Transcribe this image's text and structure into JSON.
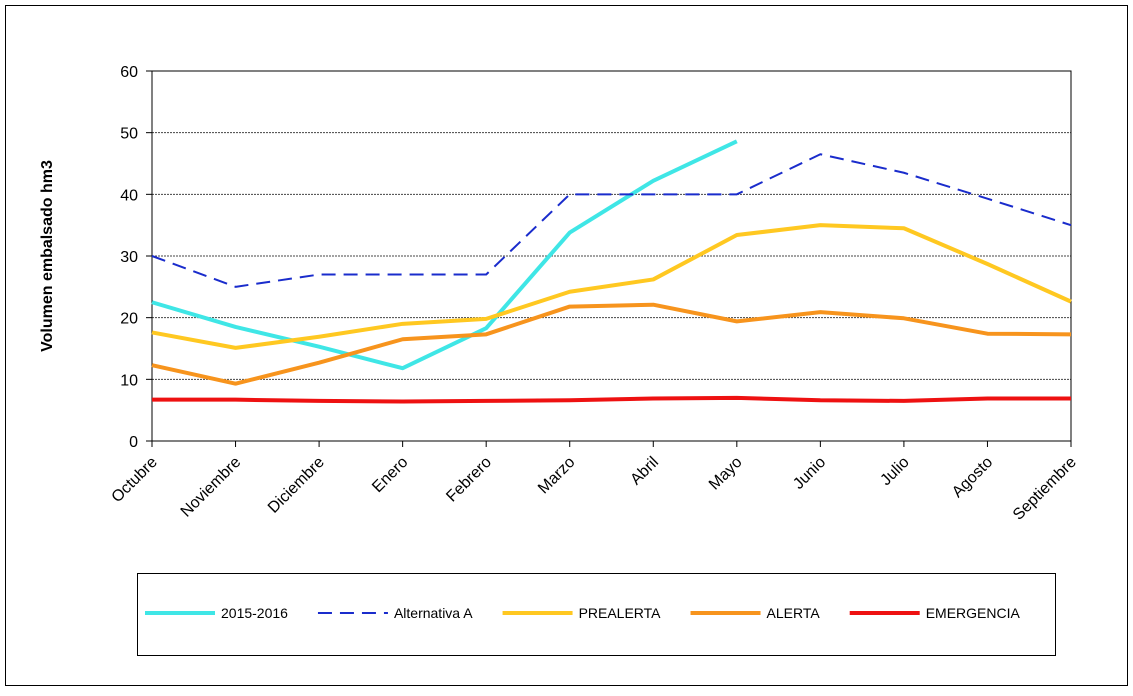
{
  "chart_data": {
    "type": "line",
    "y_label": "Volumen embalsado hm3",
    "categories": [
      "Octubre",
      "Noviembre",
      "Diciembre",
      "Enero",
      "Febrero",
      "Marzo",
      "Abril",
      "Mayo",
      "Junio",
      "Julio",
      "Agosto",
      "Septiembre"
    ],
    "ylim": [
      0,
      60
    ],
    "yticks": [
      0,
      10,
      20,
      30,
      40,
      50,
      60
    ],
    "grid": true,
    "legend": "bottom",
    "series": [
      {
        "name": "2015-2016",
        "color": "#3fe6e6",
        "values": [
          22.5,
          18.5,
          15.3,
          11.8,
          18.3,
          33.8,
          42.2,
          48.6,
          null,
          null,
          null,
          null
        ]
      },
      {
        "name": "Alternativa A",
        "color": "#1a2ccc",
        "dashed": true,
        "values": [
          30,
          25,
          27,
          27,
          27,
          40,
          40,
          40,
          46.5,
          43.5,
          39.3,
          35
        ]
      },
      {
        "name": "PREALERTA",
        "color": "#ffc821",
        "values": [
          17.6,
          15.1,
          16.9,
          19.0,
          19.8,
          24.2,
          26.2,
          33.4,
          35.0,
          34.5,
          28.7,
          22.6
        ]
      },
      {
        "name": "ALERTA",
        "color": "#f7941d",
        "values": [
          12.3,
          9.3,
          12.7,
          16.5,
          17.3,
          21.8,
          22.1,
          19.4,
          20.9,
          19.9,
          17.4,
          17.3
        ]
      },
      {
        "name": "EMERGENCIA",
        "color": "#ee1111",
        "values": [
          6.7,
          6.7,
          6.5,
          6.4,
          6.5,
          6.6,
          6.9,
          7.0,
          6.6,
          6.5,
          6.9,
          6.9
        ]
      }
    ]
  }
}
